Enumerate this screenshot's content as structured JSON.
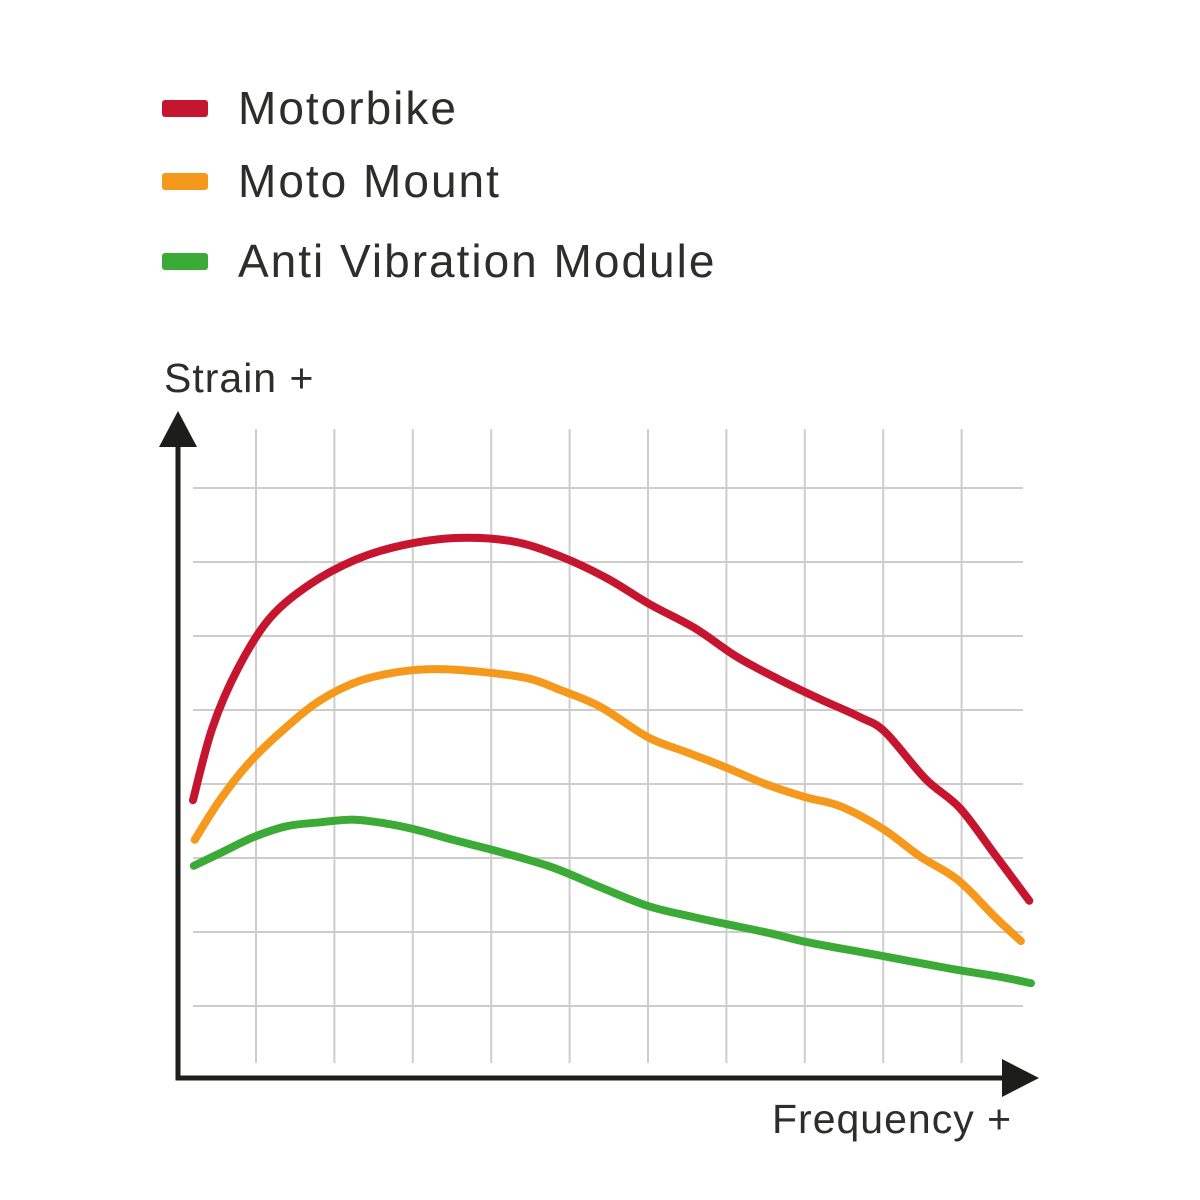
{
  "colors": {
    "background": "#ffffff",
    "grid": "#cdcdcd",
    "axis": "#1d1d1b",
    "text": "#2d2d2b",
    "red": "#c6152f",
    "orange": "#f5991d",
    "green": "#3caa36"
  },
  "legend": {
    "items": [
      {
        "label": "Motorbike",
        "color": "#c6152f"
      },
      {
        "label": "Moto Mount",
        "color": "#f5991d"
      },
      {
        "label": "Anti Vibration Module",
        "color": "#3caa36"
      }
    ]
  },
  "axes": {
    "y_label": "Strain +",
    "x_label": "Frequency +"
  },
  "chart_data": {
    "type": "line",
    "title": "",
    "xlabel": "Frequency +",
    "ylabel": "Strain +",
    "x_range": [
      0,
      100
    ],
    "y_range": [
      0,
      100
    ],
    "grid": true,
    "ticks": "none",
    "axis_style": "arrows",
    "legend_position": "top-left",
    "series": [
      {
        "name": "Motorbike",
        "color": "#c6152f",
        "points": [
          [
            0.0,
            42.8
          ],
          [
            2.3,
            53.9
          ],
          [
            5.4,
            63.2
          ],
          [
            9.2,
            70.9
          ],
          [
            14.0,
            76.1
          ],
          [
            19.3,
            79.8
          ],
          [
            24.7,
            82.0
          ],
          [
            31.3,
            83.2
          ],
          [
            38.1,
            82.7
          ],
          [
            43.8,
            80.4
          ],
          [
            49.4,
            77.0
          ],
          [
            54.5,
            73.0
          ],
          [
            59.9,
            69.3
          ],
          [
            64.9,
            64.9
          ],
          [
            69.8,
            61.5
          ],
          [
            74.8,
            58.4
          ],
          [
            79.6,
            55.6
          ],
          [
            82.6,
            53.3
          ],
          [
            87.4,
            46.1
          ],
          [
            91.5,
            41.6
          ],
          [
            95.7,
            34.4
          ],
          [
            99.8,
            27.3
          ]
        ]
      },
      {
        "name": "Moto Mount",
        "color": "#f5991d",
        "points": [
          [
            0.2,
            36.7
          ],
          [
            3.2,
            42.8
          ],
          [
            6.8,
            48.7
          ],
          [
            11.0,
            53.9
          ],
          [
            15.2,
            58.2
          ],
          [
            19.9,
            61.2
          ],
          [
            24.7,
            62.6
          ],
          [
            29.1,
            63.0
          ],
          [
            34.2,
            62.6
          ],
          [
            39.9,
            61.6
          ],
          [
            43.8,
            59.8
          ],
          [
            48.6,
            57.2
          ],
          [
            54.3,
            52.5
          ],
          [
            58.9,
            50.2
          ],
          [
            63.7,
            47.8
          ],
          [
            68.3,
            45.3
          ],
          [
            73.0,
            43.3
          ],
          [
            77.2,
            41.9
          ],
          [
            82.3,
            38.4
          ],
          [
            86.8,
            34.1
          ],
          [
            91.3,
            30.5
          ],
          [
            95.7,
            24.8
          ],
          [
            98.8,
            21.1
          ]
        ]
      },
      {
        "name": "Anti Vibration Module",
        "color": "#3caa36",
        "points": [
          [
            0.1,
            32.7
          ],
          [
            3.5,
            34.8
          ],
          [
            7.2,
            37.1
          ],
          [
            11.2,
            38.8
          ],
          [
            15.2,
            39.4
          ],
          [
            19.3,
            39.8
          ],
          [
            23.5,
            39.1
          ],
          [
            27.1,
            38.1
          ],
          [
            31.0,
            36.7
          ],
          [
            37.0,
            34.7
          ],
          [
            43.0,
            32.4
          ],
          [
            48.6,
            29.4
          ],
          [
            54.3,
            26.5
          ],
          [
            59.7,
            24.8
          ],
          [
            63.7,
            23.7
          ],
          [
            68.9,
            22.3
          ],
          [
            73.0,
            21.0
          ],
          [
            78.4,
            19.7
          ],
          [
            82.3,
            18.8
          ],
          [
            86.8,
            17.7
          ],
          [
            91.5,
            16.6
          ],
          [
            96.3,
            15.6
          ],
          [
            100.0,
            14.6
          ]
        ]
      }
    ]
  }
}
